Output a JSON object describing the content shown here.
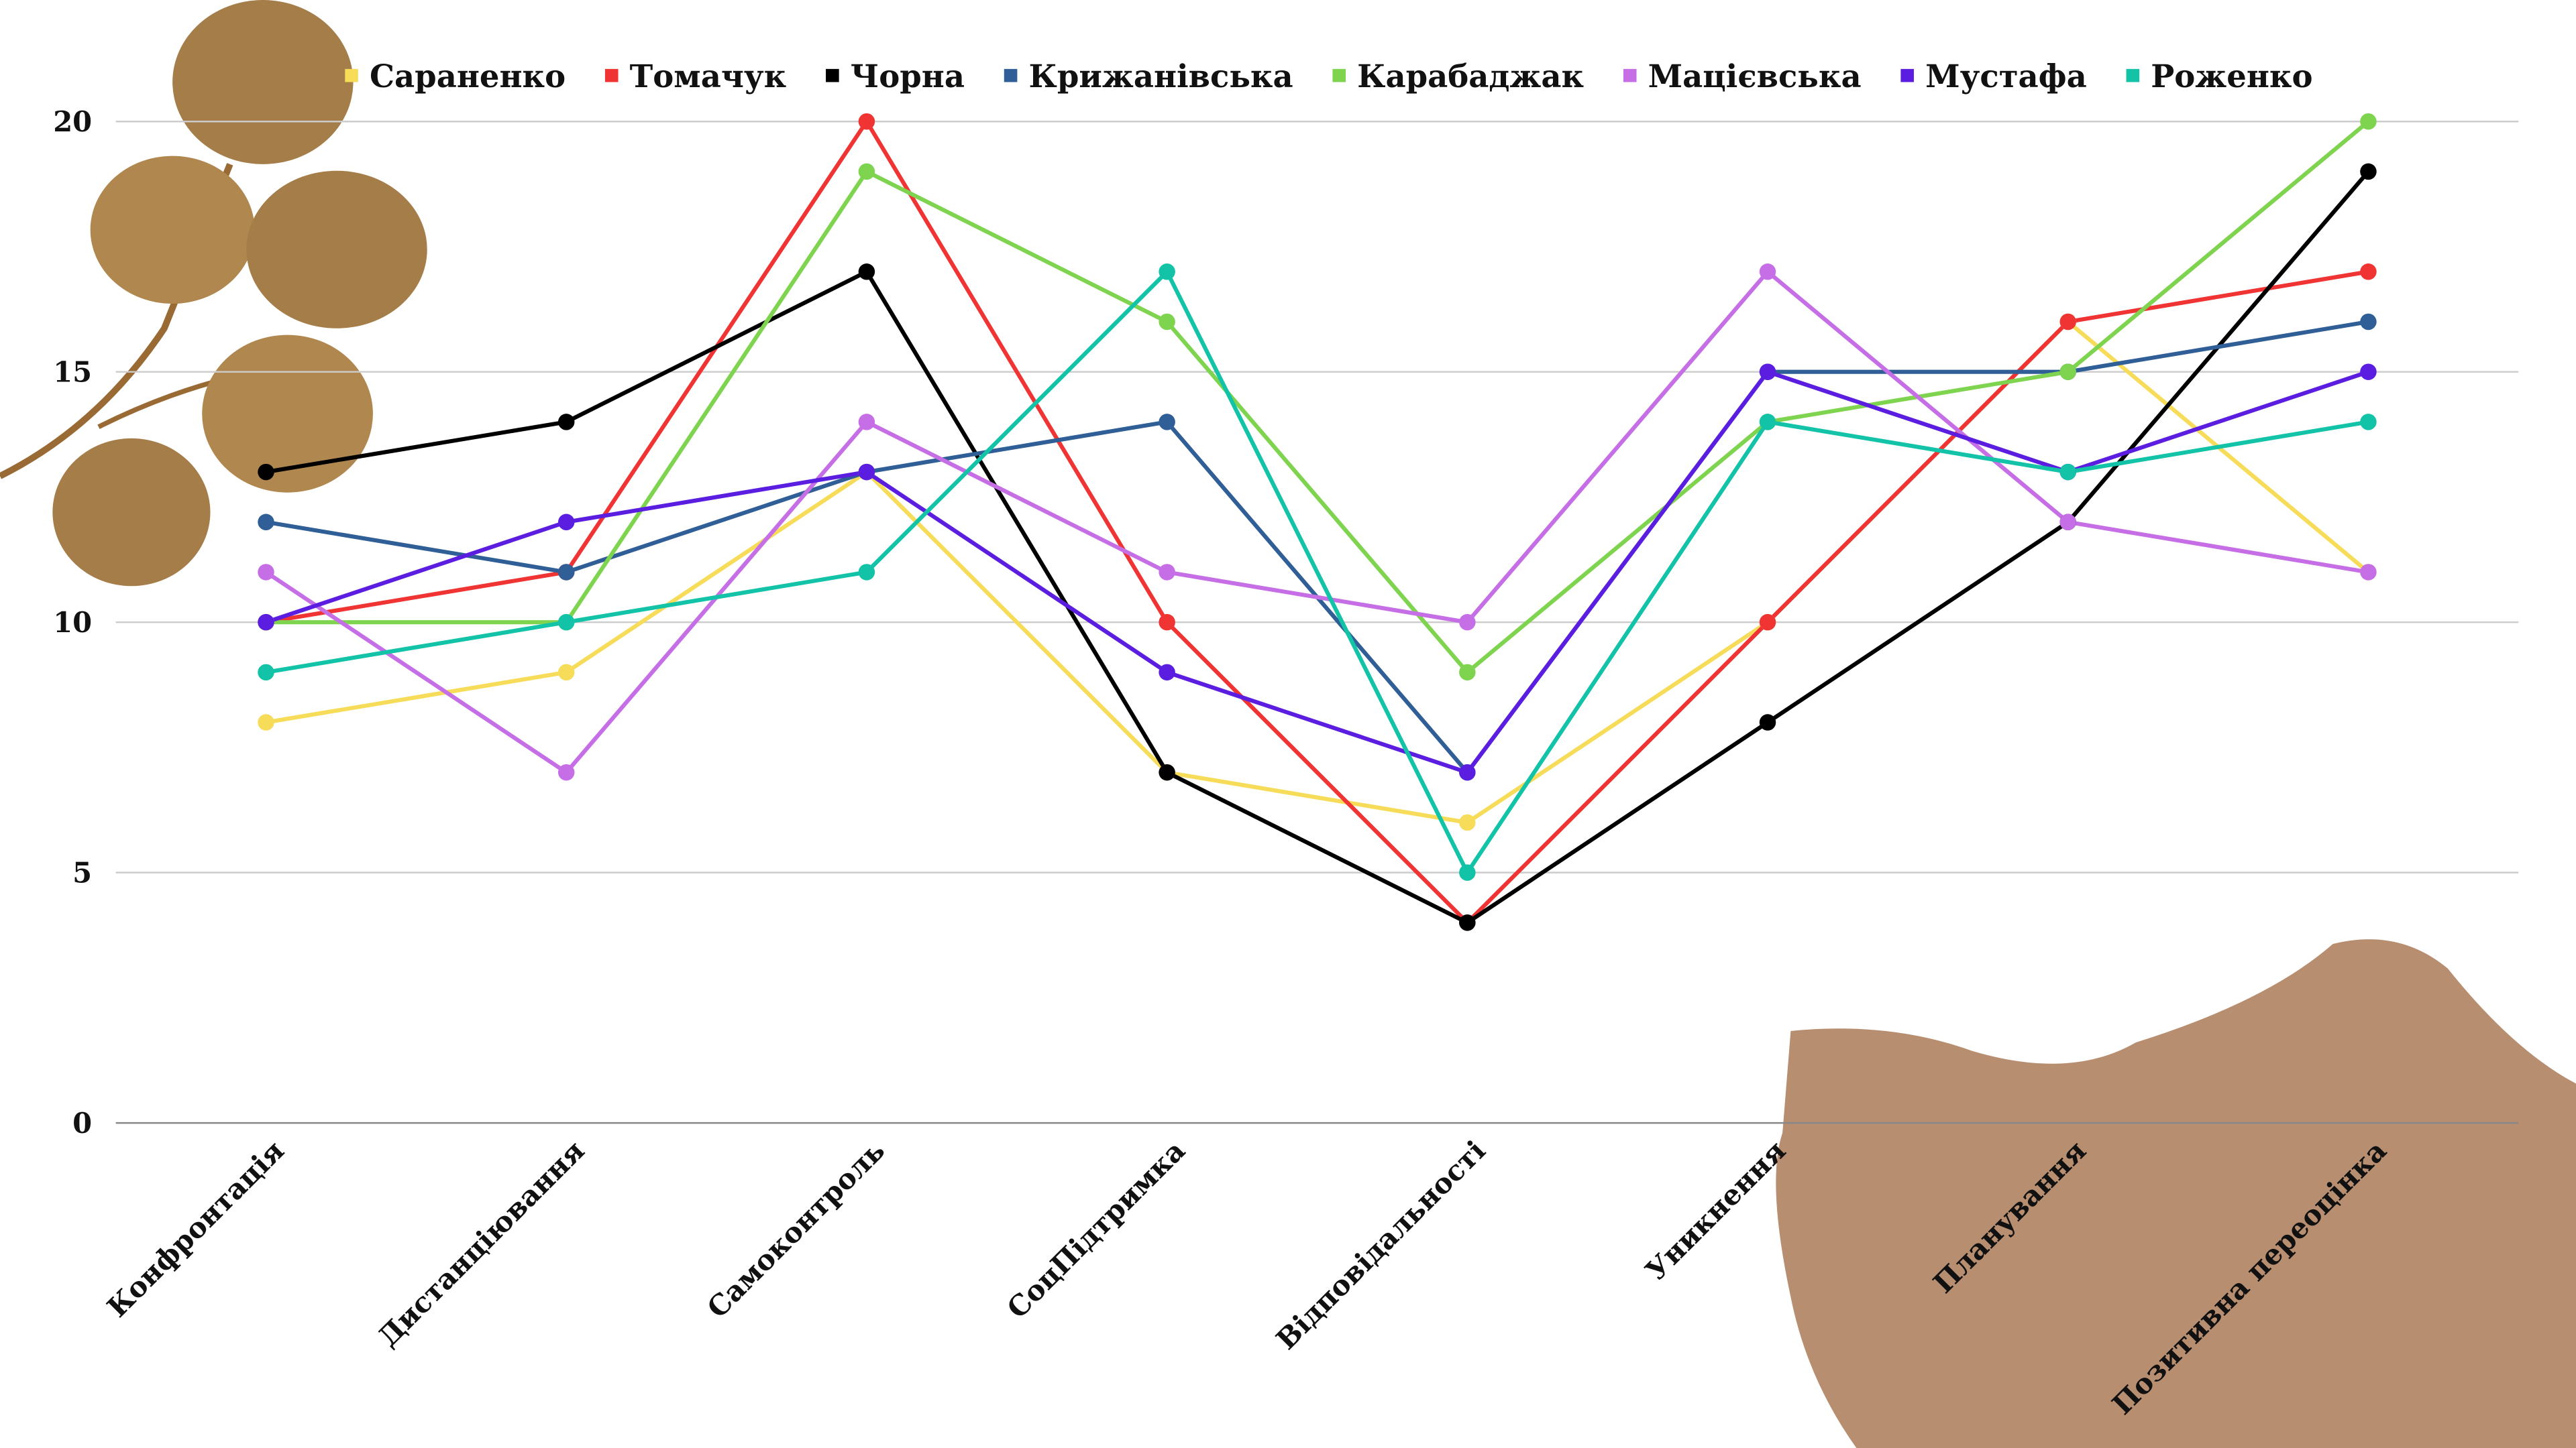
{
  "chart_data": {
    "type": "line",
    "categories": [
      "Конфронтація",
      "Дистанціювання",
      "Самоконтроль",
      "СоцПідтримка",
      "Відповідальності",
      "Уникнення",
      "Планування",
      "Позитивна переоцінка"
    ],
    "series": [
      {
        "name": "Сараненко",
        "color": "#f7dc5a",
        "values": [
          8,
          9,
          13,
          7,
          6,
          10,
          16,
          11
        ]
      },
      {
        "name": "Томачук",
        "color": "#f03434",
        "values": [
          10,
          11,
          20,
          10,
          4,
          10,
          16,
          17
        ]
      },
      {
        "name": "Чорна",
        "color": "#000000",
        "values": [
          13,
          14,
          17,
          7,
          4,
          8,
          12,
          19
        ]
      },
      {
        "name": "Крижанівська",
        "color": "#2f5f96",
        "values": [
          12,
          11,
          13,
          14,
          7,
          15,
          15,
          16
        ]
      },
      {
        "name": "Карабаджак",
        "color": "#7fd44f",
        "values": [
          10,
          10,
          19,
          16,
          9,
          14,
          15,
          20
        ]
      },
      {
        "name": "Мацієвська",
        "color": "#c56ee6",
        "values": [
          11,
          7,
          14,
          11,
          10,
          17,
          12,
          11
        ]
      },
      {
        "name": "Мустафа",
        "color": "#5b1ee0",
        "values": [
          10,
          12,
          13,
          9,
          7,
          15,
          13,
          15
        ]
      },
      {
        "name": "Роженко",
        "color": "#13c3a8",
        "values": [
          9,
          10,
          11,
          17,
          5,
          14,
          13,
          14
        ]
      }
    ],
    "ylim": [
      0,
      20
    ],
    "yticks": [
      0,
      5,
      10,
      15,
      20
    ],
    "grid": true,
    "legend": "top"
  }
}
